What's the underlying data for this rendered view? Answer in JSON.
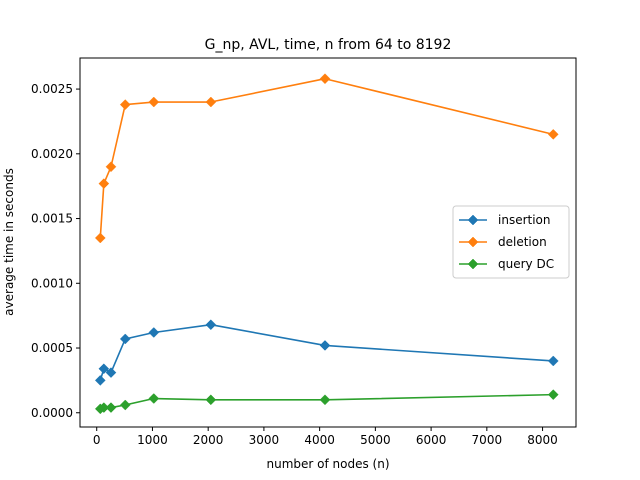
{
  "chart_data": {
    "type": "line",
    "title": "G_np, AVL, time, n from 64 to 8192",
    "xlabel": "number of nodes (n)",
    "ylabel": "average time in seconds",
    "xlim": [
      -300,
      8600
    ],
    "ylim": [
      -0.00011,
      0.00274
    ],
    "xticks": [
      0,
      1000,
      2000,
      3000,
      4000,
      5000,
      6000,
      7000,
      8000
    ],
    "xtick_labels": [
      "0",
      "1000",
      "2000",
      "3000",
      "4000",
      "5000",
      "6000",
      "7000",
      "8000"
    ],
    "yticks": [
      0.0,
      0.0005,
      0.001,
      0.0015,
      0.002,
      0.0025
    ],
    "ytick_labels": [
      "0.0000",
      "0.0005",
      "0.0010",
      "0.0015",
      "0.0020",
      "0.0025"
    ],
    "grid": false,
    "legend_position": "center-right",
    "x": [
      64,
      128,
      256,
      512,
      1024,
      2048,
      4096,
      8192
    ],
    "series": [
      {
        "name": "insertion",
        "color": "#1f77b4",
        "marker": "diamond",
        "values": [
          0.00025,
          0.00034,
          0.00031,
          0.00057,
          0.00062,
          0.00068,
          0.00052,
          0.0004
        ]
      },
      {
        "name": "deletion",
        "color": "#ff7f0e",
        "marker": "diamond",
        "values": [
          0.00135,
          0.00177,
          0.0019,
          0.00238,
          0.0024,
          0.0024,
          0.00258,
          0.00215
        ]
      },
      {
        "name": "query DC",
        "color": "#2ca02c",
        "marker": "diamond",
        "values": [
          3e-05,
          4e-05,
          4e-05,
          6e-05,
          0.00011,
          0.0001,
          0.0001,
          0.00014
        ]
      }
    ]
  }
}
